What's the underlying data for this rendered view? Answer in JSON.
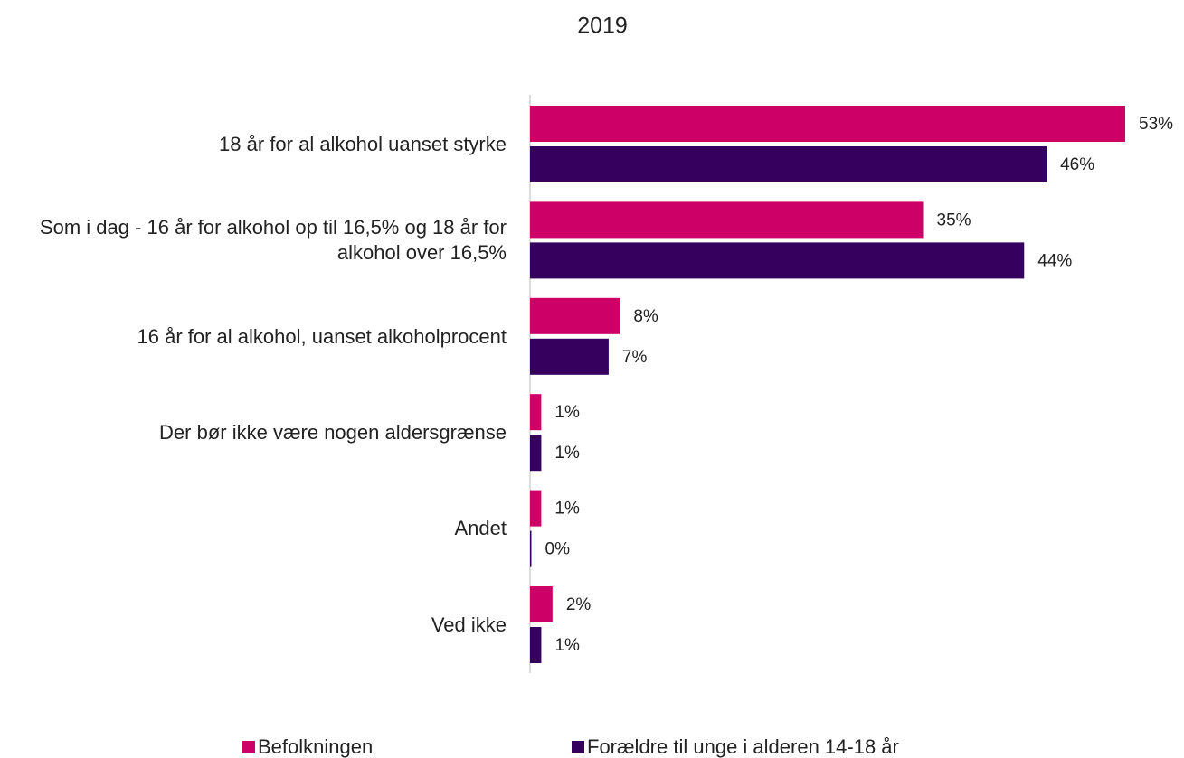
{
  "chart_data": {
    "type": "hbar",
    "title": "2019",
    "categories": [
      "18 år for al alkohol uanset styrke",
      "Som i dag - 16 år for alkohol op til 16,5% og 18 år for alkohol over 16,5%",
      "16 år for al alkohol, uanset alkoholprocent",
      "Der bør ikke være nogen aldersgrænse",
      "Andet",
      "Ved ikke"
    ],
    "series": [
      {
        "name": "Befolkningen",
        "color": "#cc0066",
        "values": [
          53,
          35,
          8,
          1,
          1,
          2
        ],
        "value_labels": [
          "53%",
          "35%",
          "8%",
          "1%",
          "1%",
          "2%"
        ]
      },
      {
        "name": "Forældre til unge i alderen 14-18 år",
        "color": "#36005f",
        "values": [
          46,
          44,
          7,
          1,
          0,
          1
        ],
        "value_labels": [
          "46%",
          "44%",
          "7%",
          "1%",
          "0%",
          "1%"
        ]
      }
    ],
    "legend": "bottom"
  }
}
